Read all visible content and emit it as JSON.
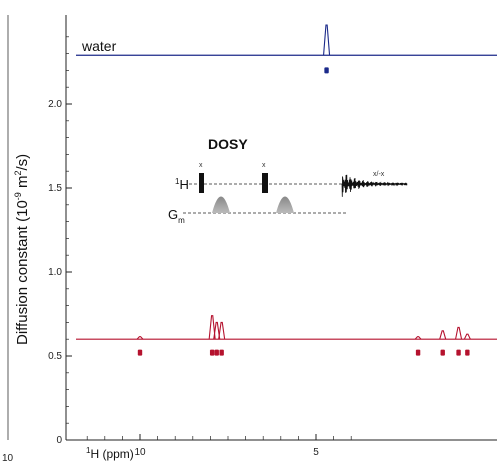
{
  "chart_data": {
    "type": "scatter",
    "title": "",
    "xlabel_main": "H (ppm)",
    "xlabel_sup": "1",
    "ylabel": "Diffusion constant (10",
    "ylabel_sup": "-9",
    "ylabel_unit": " m",
    "ylabel_sup2": "2",
    "ylabel_end": "/s)",
    "x_axis": {
      "reversed": true,
      "visible_range_ppm": [
        11.8,
        3.9
      ],
      "ticks": [
        10,
        5
      ],
      "tick_labels": [
        "10",
        "5"
      ]
    },
    "y_axis": {
      "range": [
        0,
        2.5
      ],
      "ticks": [
        0,
        0.5,
        1.0,
        1.5,
        2.0
      ],
      "tick_labels": [
        "0",
        "0.5",
        "1.0",
        "1.5",
        "2.0"
      ]
    },
    "left_panel_x_tick_label": "10",
    "grid": false,
    "series": [
      {
        "name": "water",
        "color": "#1b2a8a",
        "spectrum_baseline_D": 2.29,
        "peaks": [
          {
            "ppm": 4.7,
            "height_D": 0.18
          }
        ],
        "points": [
          {
            "ppm": 4.7,
            "D": 2.2
          }
        ]
      },
      {
        "name": "",
        "color": "#b5122e",
        "spectrum_baseline_D": 0.6,
        "peaks": [
          {
            "ppm": 10.0,
            "height_D": 0.015
          },
          {
            "ppm": 7.95,
            "height_D": 0.14
          },
          {
            "ppm": 7.82,
            "height_D": 0.1
          },
          {
            "ppm": 7.68,
            "height_D": 0.1
          },
          {
            "ppm": 2.1,
            "height_D": 0.015
          },
          {
            "ppm": 1.4,
            "height_D": 0.05
          },
          {
            "ppm": 0.95,
            "height_D": 0.07
          },
          {
            "ppm": 0.7,
            "height_D": 0.03
          }
        ],
        "points": [
          {
            "ppm": 10.0,
            "D": 0.52
          },
          {
            "ppm": 7.95,
            "D": 0.52
          },
          {
            "ppm": 7.82,
            "D": 0.52
          },
          {
            "ppm": 7.68,
            "D": 0.52
          },
          {
            "ppm": 2.1,
            "D": 0.52
          },
          {
            "ppm": 1.4,
            "D": 0.52
          },
          {
            "ppm": 0.95,
            "D": 0.52
          },
          {
            "ppm": 0.7,
            "D": 0.52
          }
        ]
      }
    ],
    "inset": {
      "title": "DOSY",
      "channel_h": "H",
      "channel_h_sup": "1",
      "channel_g": "G",
      "channel_g_sub": "m",
      "pulse_mark_1": "x",
      "pulse_mark_2": "x",
      "acq_mark": "x/-x"
    }
  }
}
